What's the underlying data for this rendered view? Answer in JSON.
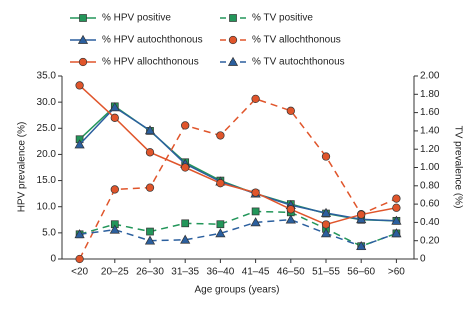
{
  "chart_data": {
    "type": "line",
    "x_label": "Age groups (years)",
    "y_label": "HPV prevalence (%)",
    "y2_label": "TV prevalence (%)",
    "categories": [
      "<20",
      "20–25",
      "26–30",
      "31–35",
      "36–40",
      "41–45",
      "46–50",
      "51–55",
      "56–60",
      ">60"
    ],
    "ylim": [
      0,
      35
    ],
    "yticks": [
      0,
      {
        "value": 5,
        "label": "5.0"
      },
      {
        "value": 10,
        "label": "10.0"
      },
      {
        "value": 15,
        "label": "15.0"
      },
      {
        "value": 20,
        "label": "20.0"
      },
      {
        "value": 25,
        "label": "25.0"
      },
      {
        "value": 30,
        "label": "30.0"
      },
      {
        "value": 35,
        "label": "35.0"
      }
    ],
    "y2lim": [
      0,
      2
    ],
    "y2ticks": [
      0,
      {
        "value": 0.2,
        "label": "0.20"
      },
      {
        "value": 0.4,
        "label": "0.40"
      },
      {
        "value": 0.6,
        "label": "0.60"
      },
      {
        "value": 0.8,
        "label": "0.80"
      },
      {
        "value": 1,
        "label": "1.00"
      },
      {
        "value": 1.2,
        "label": "1.20"
      },
      {
        "value": 1.4,
        "label": "1.40"
      },
      {
        "value": 1.6,
        "label": "1.60"
      },
      {
        "value": 1.8,
        "label": "1.80"
      },
      {
        "value": 2,
        "label": "2.00"
      }
    ],
    "legend": "top-left",
    "series": [
      {
        "name": "% HPV positive",
        "color": "#23965a",
        "marker": "square",
        "dash": false,
        "values": [
          22.9,
          29.2,
          24.5,
          18.5,
          15.0,
          12.5,
          10.5,
          8.7,
          7.5,
          7.3
        ]
      },
      {
        "name": "% TV positive",
        "color": "#23965a",
        "marker": "square",
        "dash": true,
        "axis": "y2",
        "values": [
          0.27,
          0.38,
          0.3,
          0.39,
          0.38,
          0.52,
          0.51,
          0.33,
          0.14,
          0.28
        ]
      },
      {
        "name": "% HPV autochthonous",
        "color": "#2b5f9e",
        "marker": "triangle",
        "dash": false,
        "values": [
          21.9,
          29.0,
          24.6,
          18.2,
          14.8,
          12.5,
          10.3,
          8.8,
          7.6,
          7.3
        ]
      },
      {
        "name": "% TV allochthonous",
        "color": "#e0552b",
        "marker": "circle",
        "dash": true,
        "axis": "y2",
        "values": [
          0.0,
          0.76,
          0.78,
          1.46,
          1.35,
          1.75,
          1.62,
          1.12,
          0.49,
          0.66
        ]
      },
      {
        "name": "% HPV allochthonous",
        "color": "#e0552b",
        "marker": "circle",
        "dash": false,
        "values": [
          33.2,
          27.0,
          20.4,
          17.5,
          14.5,
          12.7,
          9.5,
          6.6,
          8.5,
          9.8
        ]
      },
      {
        "name": "% TV autochthonous",
        "color": "#2b5f9e",
        "marker": "triangle",
        "dash": true,
        "axis": "y2",
        "values": [
          0.27,
          0.32,
          0.2,
          0.21,
          0.28,
          0.4,
          0.43,
          0.28,
          0.14,
          0.28
        ]
      }
    ]
  }
}
